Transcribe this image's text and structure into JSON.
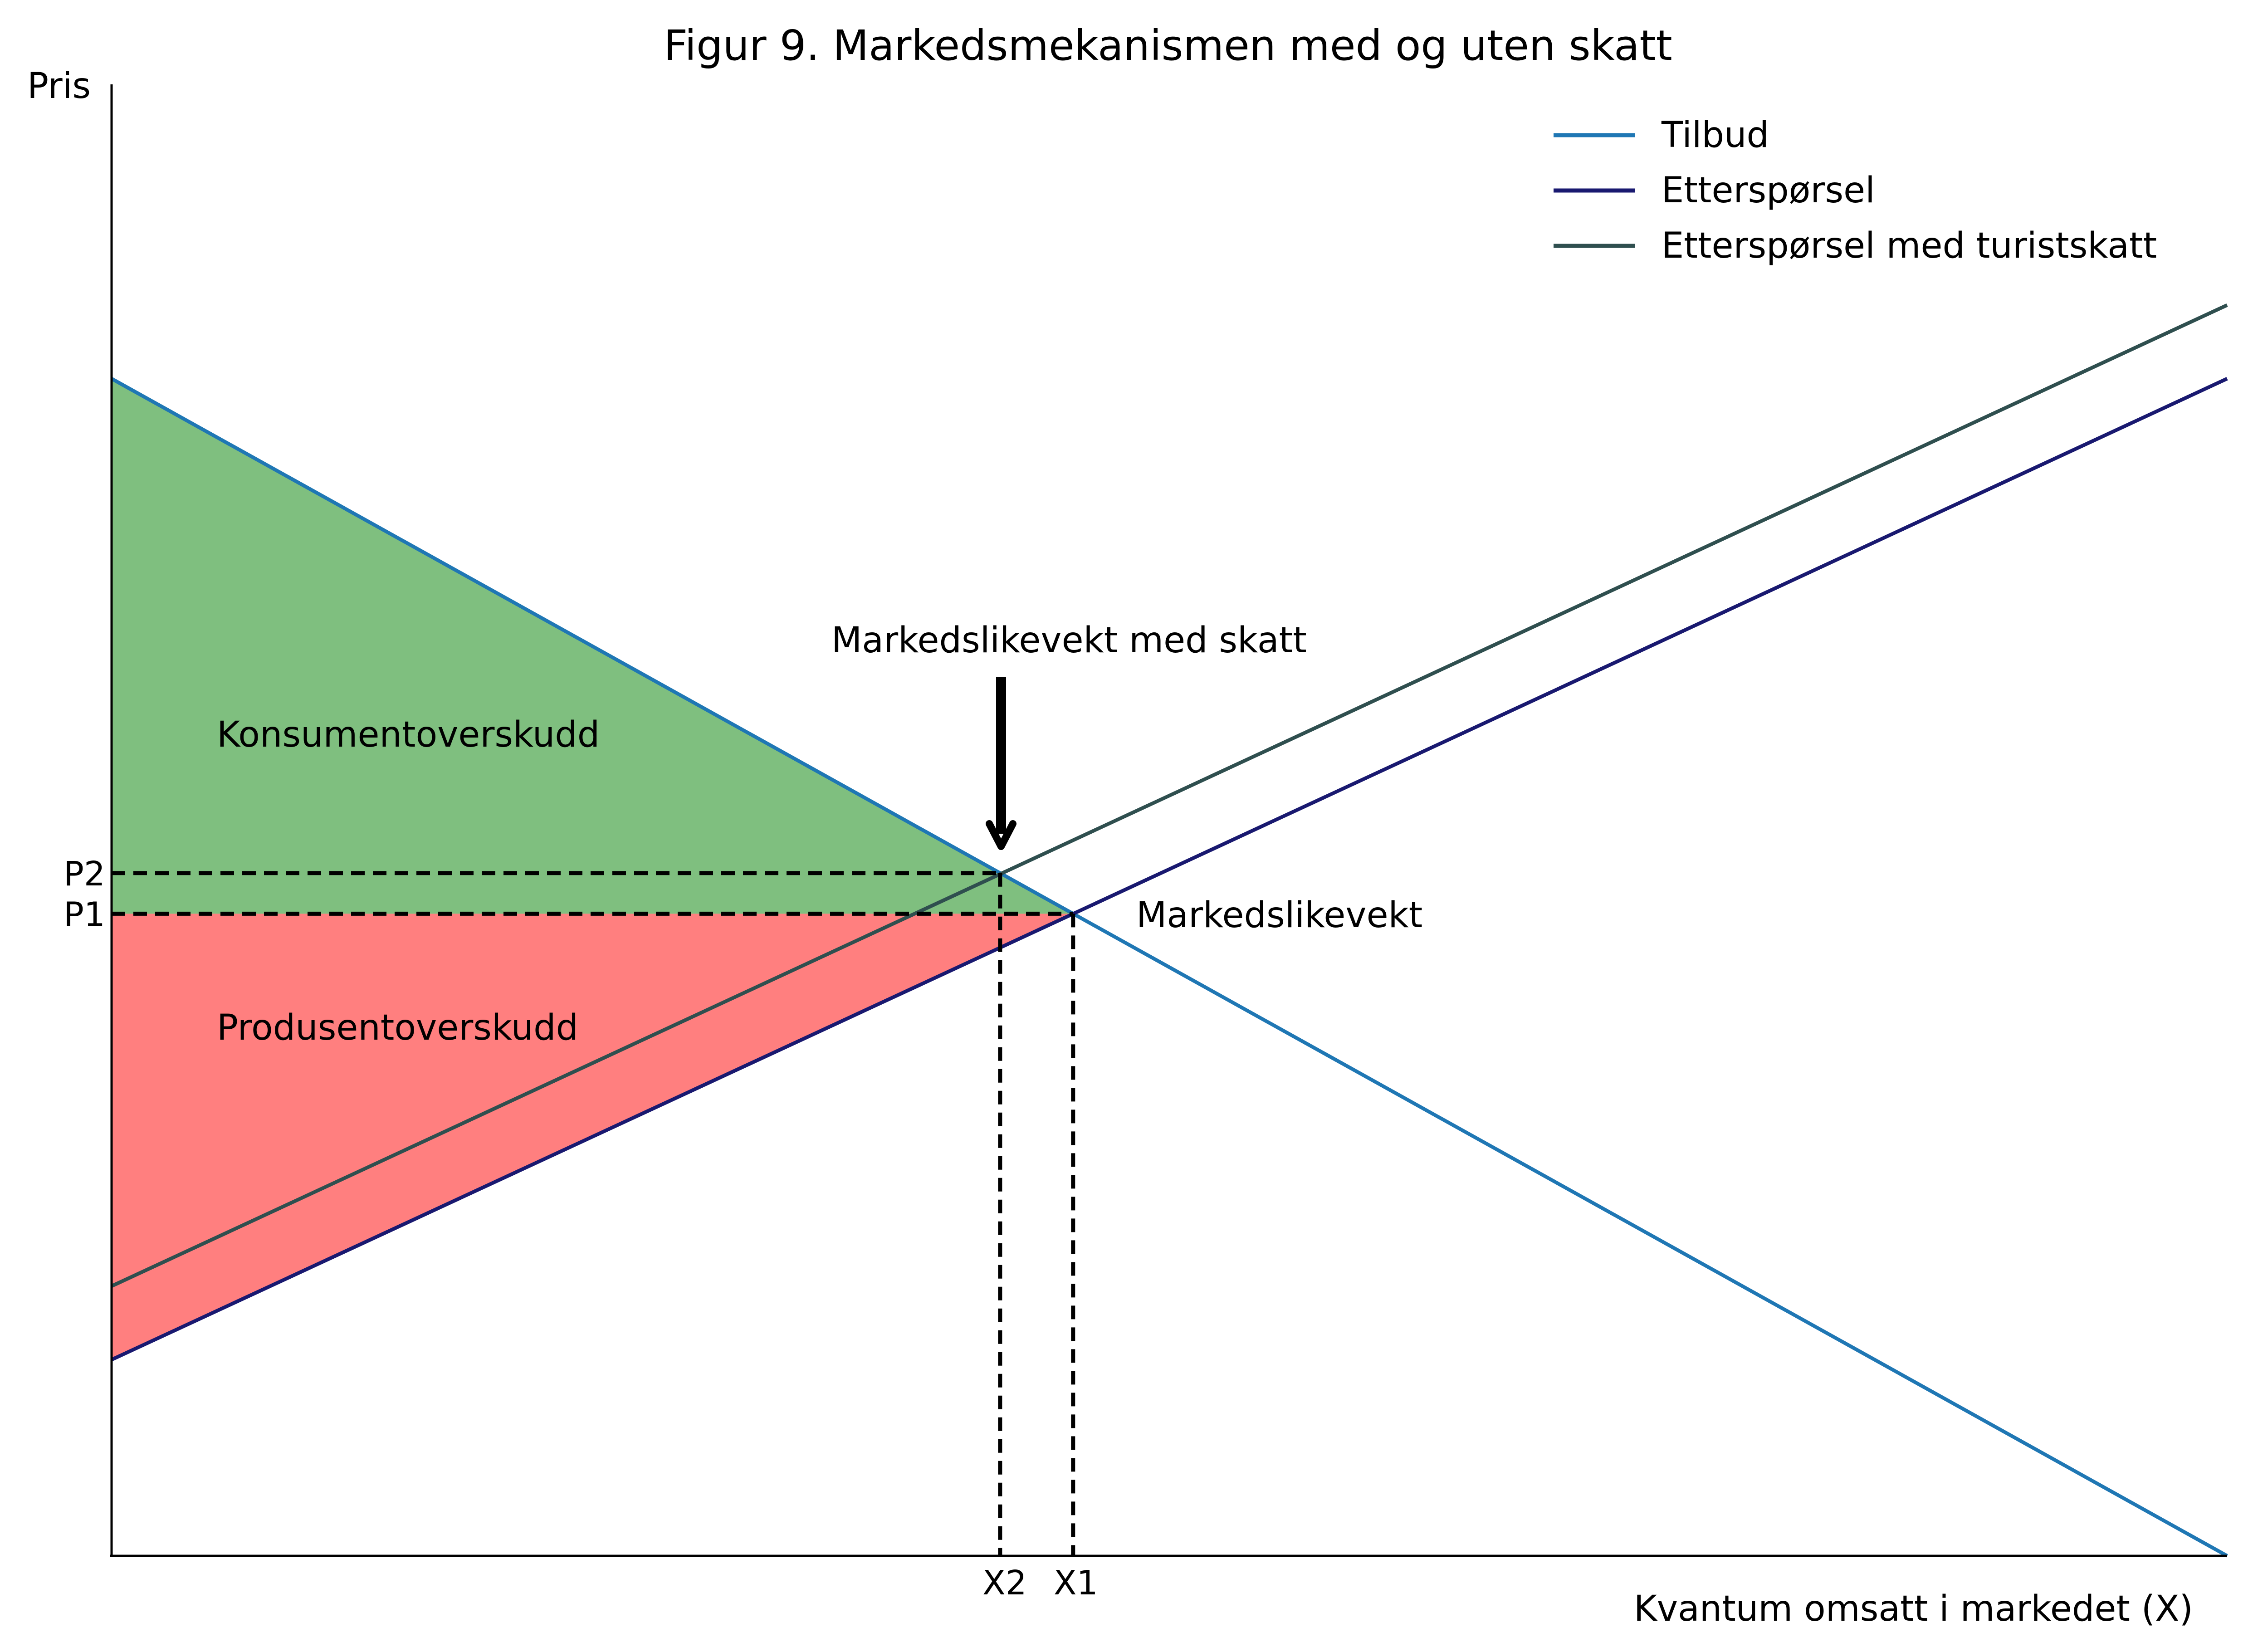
{
  "chart_data": {
    "type": "line",
    "title": "Figur 9. Markedsmekanismen med og uten skatt",
    "xlabel": "Kvantum omsatt i markedet (X)",
    "ylabel": "Pris",
    "xlim": [
      0,
      10
    ],
    "ylim": [
      0,
      10
    ],
    "grid": false,
    "legend_position": "top-right",
    "series": [
      {
        "name": "Tilbud",
        "color": "#1f77b4",
        "x": [
          0,
          10
        ],
        "y": [
          8,
          0
        ]
      },
      {
        "name": "Etterspørsel",
        "color": "#191970",
        "x": [
          0,
          10
        ],
        "y": [
          1.333,
          8
        ]
      },
      {
        "name": "Etterspørsel med turistskatt",
        "color": "#2f4f4f",
        "x": [
          0,
          10
        ],
        "y": [
          1.833,
          8.5
        ]
      }
    ],
    "x_ticks": [
      {
        "label": "X2",
        "value": 4.2
      },
      {
        "label": "X1",
        "value": 4.545
      }
    ],
    "y_ticks": [
      {
        "label": "P2",
        "value": 4.64
      },
      {
        "label": "P1",
        "value": 4.364
      }
    ],
    "areas": [
      {
        "label": "Konsumentoverskudd",
        "color": "#008000",
        "opacity": 0.5
      },
      {
        "label": "Produsentoverskudd",
        "color": "#ff0000",
        "opacity": 0.5
      }
    ],
    "annotations": [
      {
        "text": "Markedslikevekt",
        "x": 4.545,
        "y": 4.364
      },
      {
        "text": "Markedslikevekt med skatt",
        "x": 4.2,
        "y": 4.64
      }
    ]
  }
}
